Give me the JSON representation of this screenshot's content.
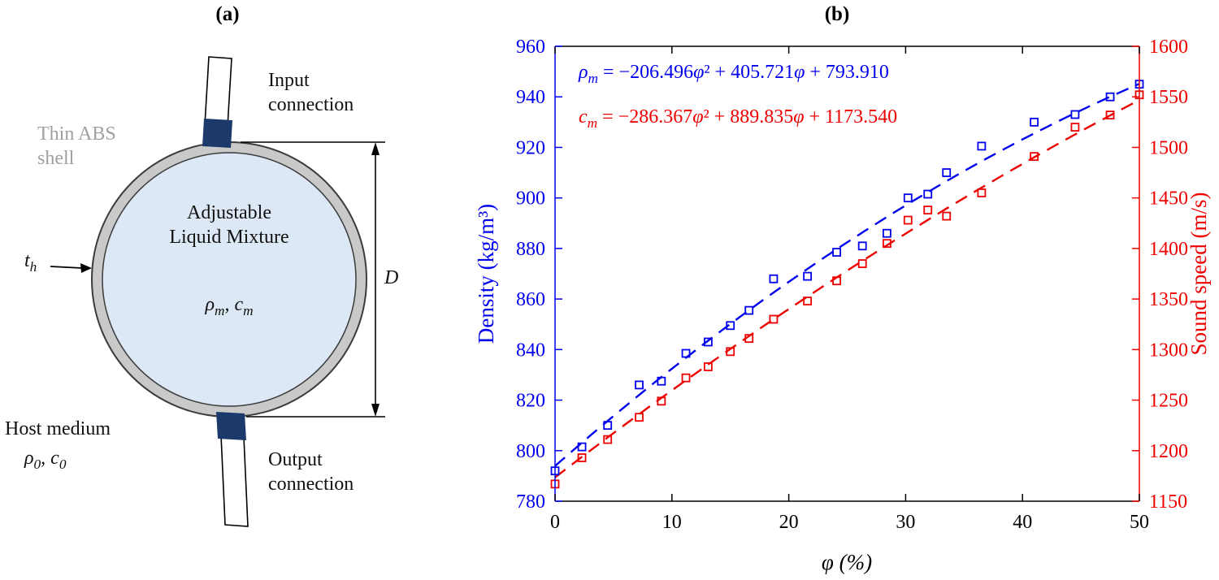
{
  "figure": {
    "panel_a_label": "(a)",
    "panel_b_label": "(b)"
  },
  "diagram": {
    "shell_label": [
      "Thin ABS",
      "shell"
    ],
    "input_label": [
      "Input",
      "connection"
    ],
    "output_label": [
      "Output",
      "connection"
    ],
    "mixture_label": [
      "Adjustable",
      "Liquid Mixture"
    ],
    "host_label": "Host medium",
    "sym": {
      "rho": "ρ",
      "m": "m",
      "comma_c": ", c",
      "zero": "0",
      "t": "t",
      "h": "h",
      "D": "D"
    }
  },
  "plot": {
    "equations": {
      "density": {
        "symbol": "ρ",
        "sub": "m",
        "parts": [
          " = −206.496",
          "φ",
          "² + 405.721",
          "φ",
          " + 793.910"
        ]
      },
      "speed": {
        "symbol": "c",
        "sub": "m",
        "parts": [
          " = −286.367",
          "φ",
          "² + 889.835",
          "φ",
          " + 1173.540"
        ]
      }
    }
  },
  "chart_data": {
    "type": "scatter",
    "title": "",
    "xlabel": "φ (%)",
    "x_range": [
      0,
      50
    ],
    "x_ticks": [
      0,
      10,
      20,
      30,
      40,
      50
    ],
    "grid": false,
    "legend": "none",
    "left_axis": {
      "label": "Density (kg/m³)",
      "color": "#0000ee",
      "range": [
        780,
        960
      ],
      "ticks": [
        780,
        800,
        820,
        840,
        860,
        880,
        900,
        920,
        940,
        960
      ]
    },
    "right_axis": {
      "label": "Sound speed (m/s)",
      "color": "#ee0000",
      "range": [
        1150,
        1600
      ],
      "ticks": [
        1150,
        1200,
        1250,
        1300,
        1350,
        1400,
        1450,
        1500,
        1550,
        1600
      ]
    },
    "series": [
      {
        "name": "density-measurements",
        "axis": "left",
        "marker": "open-square",
        "color": "#0000ee",
        "x": [
          0,
          2.3,
          4.5,
          7.2,
          9.1,
          11.2,
          13.1,
          15,
          16.6,
          18.7,
          21.6,
          24.1,
          26.3,
          28.4,
          30.2,
          31.9,
          33.5,
          36.5,
          41,
          44.5,
          47.5,
          50
        ],
        "y": [
          792,
          801.5,
          810,
          826,
          827.5,
          838.5,
          843,
          849.5,
          855.5,
          868,
          869,
          878.5,
          881,
          886,
          900,
          901.5,
          910,
          920.5,
          930,
          933,
          940,
          945
        ]
      },
      {
        "name": "sound-speed-measurements",
        "axis": "right",
        "marker": "open-square",
        "color": "#ee0000",
        "x": [
          0,
          2.3,
          4.5,
          7.2,
          9.1,
          11.2,
          13.1,
          15,
          16.6,
          18.7,
          21.6,
          24.1,
          26.3,
          28.4,
          30.2,
          31.9,
          33.5,
          36.5,
          41,
          44.5,
          47.5,
          50
        ],
        "y": [
          1167,
          1193,
          1211,
          1233,
          1249,
          1272,
          1283,
          1298,
          1311,
          1330,
          1348,
          1368,
          1385,
          1405,
          1428,
          1438,
          1432,
          1455,
          1491,
          1520,
          1532,
          1552
        ]
      }
    ],
    "fits": [
      {
        "name": "density-quadratic-fit",
        "axis": "left",
        "style": "dashed",
        "color": "#0000ee",
        "coeffs_phi_fraction": [
          -206.496,
          405.721,
          793.91
        ]
      },
      {
        "name": "sound-speed-quadratic-fit",
        "axis": "right",
        "style": "dashed",
        "color": "#ee0000",
        "coeffs_phi_fraction": [
          -286.367,
          889.835,
          1173.54
        ]
      }
    ]
  }
}
